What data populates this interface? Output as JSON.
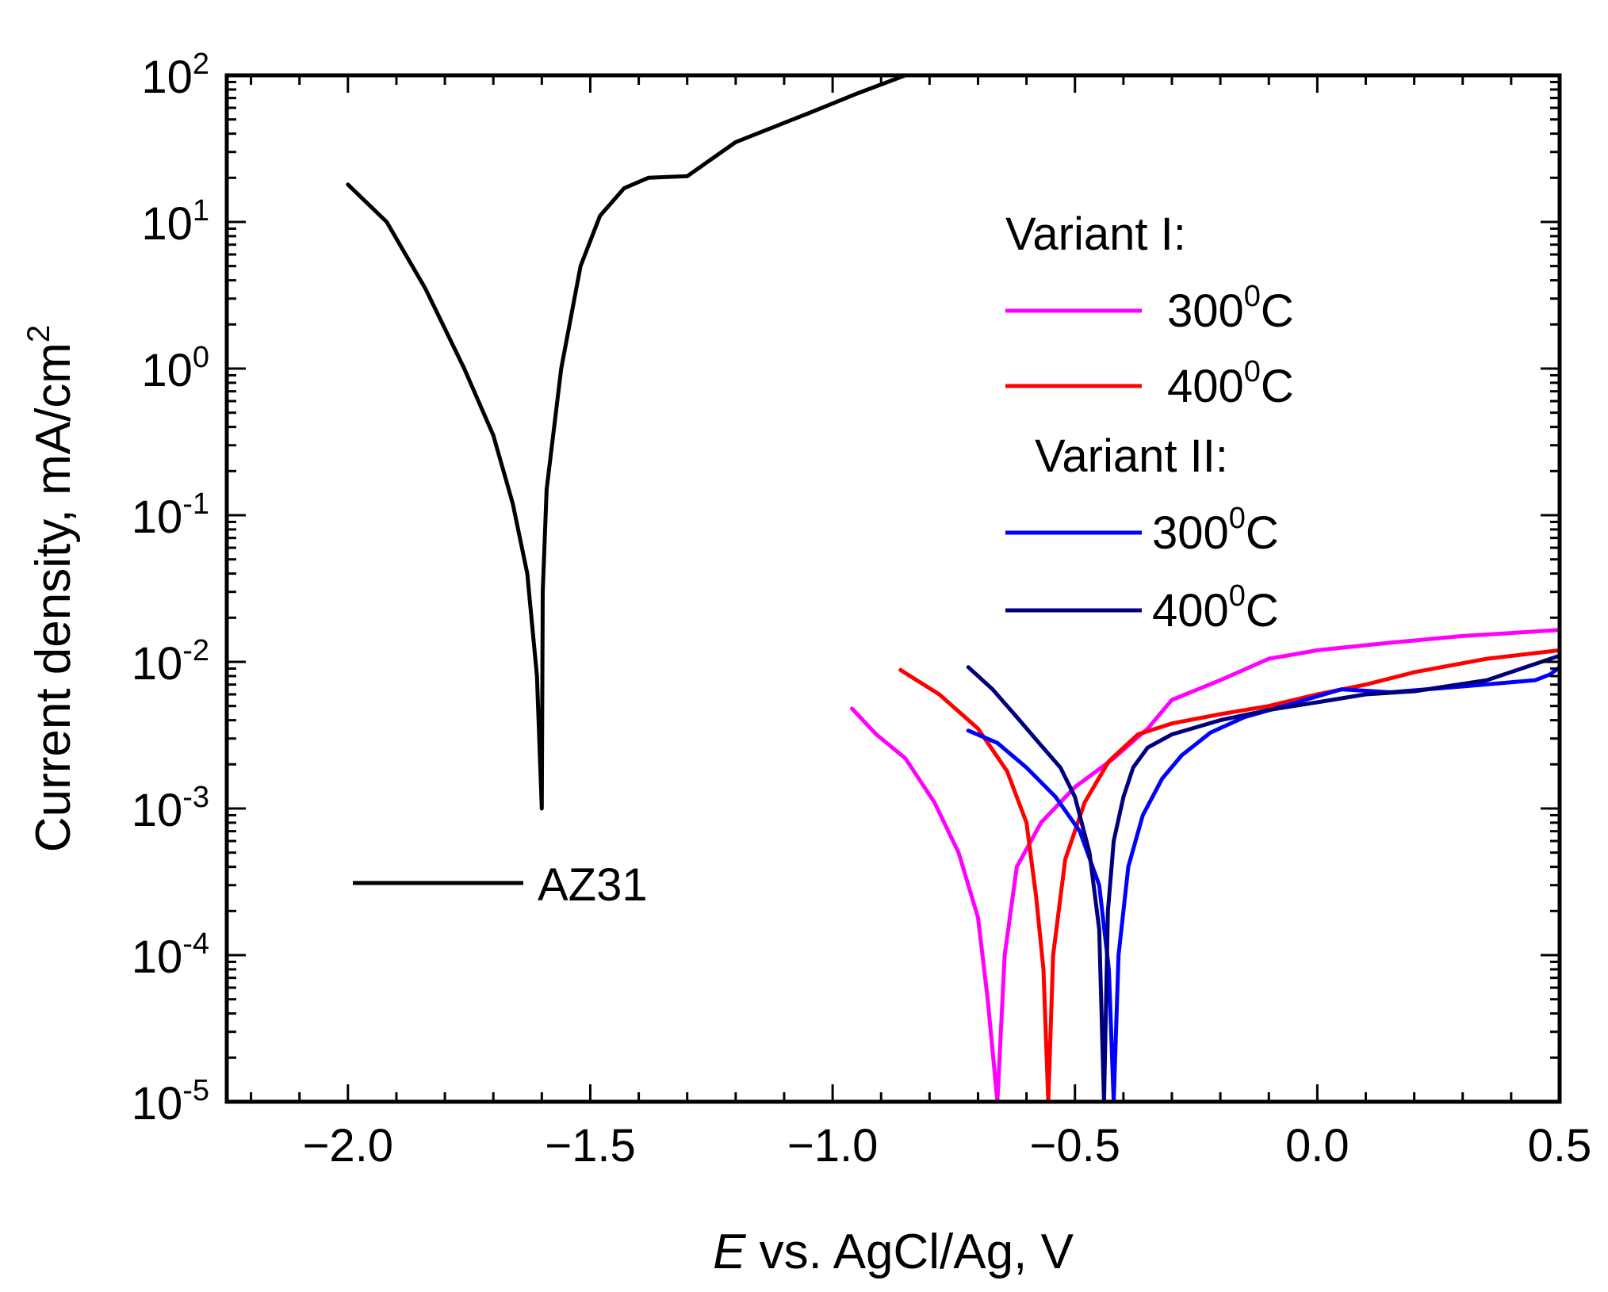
{
  "chart_data": {
    "type": "line",
    "title": "",
    "xlabel_italic": "E",
    "xlabel_rest": " vs. AgCl/Ag, V",
    "ylabel": "Current density, mA/cm",
    "ylabel_sup": "2",
    "yscale": "log",
    "xlim": [
      -2.25,
      0.5
    ],
    "ylim": [
      1e-05,
      100
    ],
    "x_ticks": [
      {
        "value": -2.0,
        "label": "−2.0"
      },
      {
        "value": -1.5,
        "label": "−1.5"
      },
      {
        "value": -1.0,
        "label": "−1.0"
      },
      {
        "value": -0.5,
        "label": "−0.5"
      },
      {
        "value": 0.0,
        "label": "0.0"
      },
      {
        "value": 0.5,
        "label": "0.5"
      }
    ],
    "y_ticks": [
      {
        "exp": -5,
        "base": "10",
        "sup": "-5"
      },
      {
        "exp": -4,
        "base": "10",
        "sup": "-4"
      },
      {
        "exp": -3,
        "base": "10",
        "sup": "-3"
      },
      {
        "exp": -2,
        "base": "10",
        "sup": "-2"
      },
      {
        "exp": -1,
        "base": "10",
        "sup": "-1"
      },
      {
        "exp": 0,
        "base": "10",
        "sup": "0"
      },
      {
        "exp": 1,
        "base": "10",
        "sup": "1"
      },
      {
        "exp": 2,
        "base": "10",
        "sup": "2"
      }
    ],
    "legend_groups": [
      {
        "header": "Variant I:",
        "entries": [
          {
            "series": "v1_300",
            "base": "300",
            "sup": "0",
            "unit": "C"
          },
          {
            "series": "v1_400",
            "base": "400",
            "sup": "0",
            "unit": "C"
          }
        ]
      },
      {
        "header": "Variant II:",
        "entries": [
          {
            "series": "v2_300",
            "base": "300",
            "sup": "0",
            "unit": "C"
          },
          {
            "series": "v2_400",
            "base": "400",
            "sup": "0",
            "unit": "C"
          }
        ]
      }
    ],
    "series": [
      {
        "id": "az31",
        "name": "AZ31",
        "color": "#000000",
        "points": [
          [
            -2.0,
            18
          ],
          [
            -1.92,
            10
          ],
          [
            -1.84,
            3.5
          ],
          [
            -1.76,
            1.0
          ],
          [
            -1.7,
            0.35
          ],
          [
            -1.66,
            0.12
          ],
          [
            -1.63,
            0.04
          ],
          [
            -1.61,
            0.008
          ],
          [
            -1.6,
            0.001
          ],
          [
            -1.598,
            0.03
          ],
          [
            -1.59,
            0.15
          ],
          [
            -1.56,
            1.0
          ],
          [
            -1.52,
            5.0
          ],
          [
            -1.48,
            11
          ],
          [
            -1.43,
            17
          ],
          [
            -1.38,
            20
          ],
          [
            -1.3,
            20.5
          ],
          [
            -1.2,
            35
          ],
          [
            -1.05,
            55
          ],
          [
            -0.95,
            75
          ],
          [
            -0.85,
            100
          ]
        ]
      },
      {
        "id": "v1_300",
        "name": "Variant I 300°C",
        "color": "#ff00ff",
        "points": [
          [
            -0.96,
            0.0048
          ],
          [
            -0.91,
            0.0032
          ],
          [
            -0.85,
            0.0022
          ],
          [
            -0.79,
            0.0011
          ],
          [
            -0.74,
            0.0005
          ],
          [
            -0.7,
            0.00018
          ],
          [
            -0.68,
            5e-05
          ],
          [
            -0.66,
            1e-05
          ],
          [
            -0.645,
            0.0001
          ],
          [
            -0.62,
            0.0004
          ],
          [
            -0.57,
            0.0008
          ],
          [
            -0.5,
            0.0014
          ],
          [
            -0.42,
            0.0022
          ],
          [
            -0.35,
            0.0035
          ],
          [
            -0.3,
            0.0055
          ],
          [
            -0.2,
            0.0075
          ],
          [
            -0.1,
            0.0105
          ],
          [
            0.0,
            0.012
          ],
          [
            0.15,
            0.0135
          ],
          [
            0.3,
            0.015
          ],
          [
            0.5,
            0.0165
          ]
        ]
      },
      {
        "id": "v1_400",
        "name": "Variant I 400°C",
        "color": "#ff0000",
        "points": [
          [
            -0.86,
            0.0088
          ],
          [
            -0.78,
            0.006
          ],
          [
            -0.7,
            0.0035
          ],
          [
            -0.64,
            0.0018
          ],
          [
            -0.6,
            0.0008
          ],
          [
            -0.58,
            0.00025
          ],
          [
            -0.565,
            8e-05
          ],
          [
            -0.555,
            1e-05
          ],
          [
            -0.545,
            0.0001
          ],
          [
            -0.52,
            0.00045
          ],
          [
            -0.48,
            0.0011
          ],
          [
            -0.43,
            0.0021
          ],
          [
            -0.37,
            0.0032
          ],
          [
            -0.3,
            0.0038
          ],
          [
            -0.2,
            0.0044
          ],
          [
            -0.1,
            0.005
          ],
          [
            0.0,
            0.006
          ],
          [
            0.1,
            0.007
          ],
          [
            0.2,
            0.0085
          ],
          [
            0.35,
            0.0105
          ],
          [
            0.5,
            0.012
          ]
        ]
      },
      {
        "id": "v2_300",
        "name": "Variant II 300°C",
        "color": "#0000ff",
        "points": [
          [
            -0.72,
            0.0034
          ],
          [
            -0.66,
            0.0028
          ],
          [
            -0.6,
            0.0019
          ],
          [
            -0.54,
            0.0012
          ],
          [
            -0.49,
            0.0007
          ],
          [
            -0.45,
            0.0003
          ],
          [
            -0.43,
            8e-05
          ],
          [
            -0.42,
            1e-05
          ],
          [
            -0.41,
            0.0001
          ],
          [
            -0.39,
            0.0004
          ],
          [
            -0.36,
            0.0009
          ],
          [
            -0.32,
            0.0016
          ],
          [
            -0.28,
            0.0023
          ],
          [
            -0.22,
            0.0033
          ],
          [
            -0.15,
            0.0042
          ],
          [
            -0.05,
            0.0052
          ],
          [
            0.05,
            0.0065
          ],
          [
            0.15,
            0.0062
          ],
          [
            0.3,
            0.0068
          ],
          [
            0.45,
            0.0075
          ],
          [
            0.48,
            0.0082
          ],
          [
            0.5,
            0.0092
          ]
        ]
      },
      {
        "id": "v2_400",
        "name": "Variant II 400°C",
        "color": "#00007f",
        "points": [
          [
            -0.72,
            0.0092
          ],
          [
            -0.67,
            0.0065
          ],
          [
            -0.62,
            0.0042
          ],
          [
            -0.57,
            0.0027
          ],
          [
            -0.53,
            0.0019
          ],
          [
            -0.5,
            0.0012
          ],
          [
            -0.47,
            0.0005
          ],
          [
            -0.45,
            0.00015
          ],
          [
            -0.44,
            1e-05
          ],
          [
            -0.432,
            0.0002
          ],
          [
            -0.42,
            0.0006
          ],
          [
            -0.4,
            0.0012
          ],
          [
            -0.38,
            0.0019
          ],
          [
            -0.35,
            0.0026
          ],
          [
            -0.3,
            0.0032
          ],
          [
            -0.2,
            0.004
          ],
          [
            -0.1,
            0.0047
          ],
          [
            0.0,
            0.0053
          ],
          [
            0.1,
            0.006
          ],
          [
            0.2,
            0.0063
          ],
          [
            0.35,
            0.0075
          ],
          [
            0.5,
            0.011
          ]
        ]
      }
    ]
  }
}
